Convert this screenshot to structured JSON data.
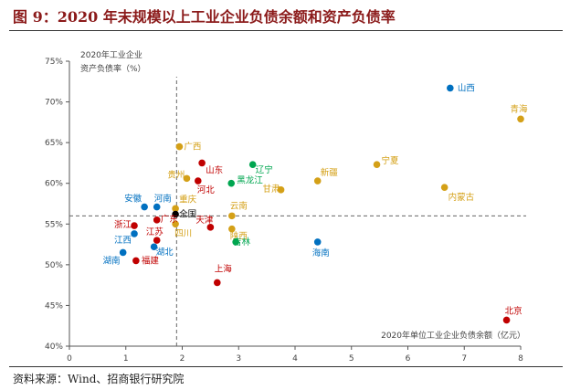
{
  "figure": {
    "title": "图 9：2020 年末规模以上工业企业负债余额和资产负债率",
    "source": "资料来源：Wind、招商银行研究院"
  },
  "chart_data": {
    "type": "scatter",
    "title": "2020年末规模以上工业企业负债余额和资产负债率",
    "xlabel": "2020年单位工业企业负债余额（亿元）",
    "ylabel": "2020年工业企业资产负债率（%）",
    "xlim": [
      0,
      8
    ],
    "ylim": [
      40,
      75
    ],
    "xticks": [
      "0",
      "1",
      "2",
      "3",
      "4",
      "5",
      "6",
      "7",
      "8"
    ],
    "yticks": [
      "40%",
      "45%",
      "50%",
      "55%",
      "60%",
      "65%",
      "70%",
      "75%"
    ],
    "ref_lines": {
      "x": 1.9,
      "y": 56
    },
    "colors": {
      "东部": "#c00000",
      "中部": "#0070c0",
      "西部": "#d4a017",
      "东北": "#00a650",
      "全国": "#000000"
    },
    "points": [
      {
        "name": "山西",
        "x": 6.75,
        "y": 71.7,
        "group": "中部"
      },
      {
        "name": "青海",
        "x": 8.0,
        "y": 67.9,
        "group": "西部"
      },
      {
        "name": "广西",
        "x": 1.95,
        "y": 64.5,
        "group": "西部"
      },
      {
        "name": "宁夏",
        "x": 5.45,
        "y": 62.3,
        "group": "西部"
      },
      {
        "name": "辽宁",
        "x": 3.25,
        "y": 62.3,
        "group": "东北"
      },
      {
        "name": "山东",
        "x": 2.35,
        "y": 62.5,
        "group": "东部"
      },
      {
        "name": "贵州",
        "x": 2.08,
        "y": 60.6,
        "group": "西部"
      },
      {
        "name": "河北",
        "x": 2.28,
        "y": 60.3,
        "group": "东部"
      },
      {
        "name": "黑龙江",
        "x": 2.87,
        "y": 60.0,
        "group": "东北"
      },
      {
        "name": "新疆",
        "x": 4.4,
        "y": 60.3,
        "group": "西部"
      },
      {
        "name": "甘肃",
        "x": 3.75,
        "y": 59.2,
        "group": "西部"
      },
      {
        "name": "内蒙古",
        "x": 6.65,
        "y": 59.5,
        "group": "西部"
      },
      {
        "name": "安徽",
        "x": 1.33,
        "y": 57.1,
        "group": "中部"
      },
      {
        "name": "河南",
        "x": 1.55,
        "y": 57.1,
        "group": "中部"
      },
      {
        "name": "重庆",
        "x": 1.88,
        "y": 56.9,
        "group": "西部"
      },
      {
        "name": "云南",
        "x": 2.88,
        "y": 56.0,
        "group": "西部"
      },
      {
        "name": "全国",
        "x": 1.88,
        "y": 56.2,
        "group": "全国"
      },
      {
        "name": "浙江",
        "x": 1.15,
        "y": 54.8,
        "group": "东部"
      },
      {
        "name": "广东",
        "x": 1.55,
        "y": 55.5,
        "group": "东部"
      },
      {
        "name": "天津",
        "x": 2.5,
        "y": 54.6,
        "group": "东部"
      },
      {
        "name": "四川",
        "x": 1.88,
        "y": 55.0,
        "group": "西部"
      },
      {
        "name": "陕西",
        "x": 2.88,
        "y": 54.4,
        "group": "西部"
      },
      {
        "name": "江西",
        "x": 1.15,
        "y": 53.8,
        "group": "中部"
      },
      {
        "name": "江苏",
        "x": 1.55,
        "y": 53.0,
        "group": "东部"
      },
      {
        "name": "吉林",
        "x": 2.95,
        "y": 52.8,
        "group": "东北"
      },
      {
        "name": "湖北",
        "x": 1.5,
        "y": 52.2,
        "group": "中部"
      },
      {
        "name": "海南",
        "x": 4.4,
        "y": 52.8,
        "group": "中部"
      },
      {
        "name": "湖南",
        "x": 0.95,
        "y": 51.5,
        "group": "中部"
      },
      {
        "name": "福建",
        "x": 1.18,
        "y": 50.5,
        "group": "东部"
      },
      {
        "name": "上海",
        "x": 2.62,
        "y": 47.8,
        "group": "东部"
      },
      {
        "name": "北京",
        "x": 7.75,
        "y": 43.2,
        "group": "东部"
      }
    ]
  }
}
